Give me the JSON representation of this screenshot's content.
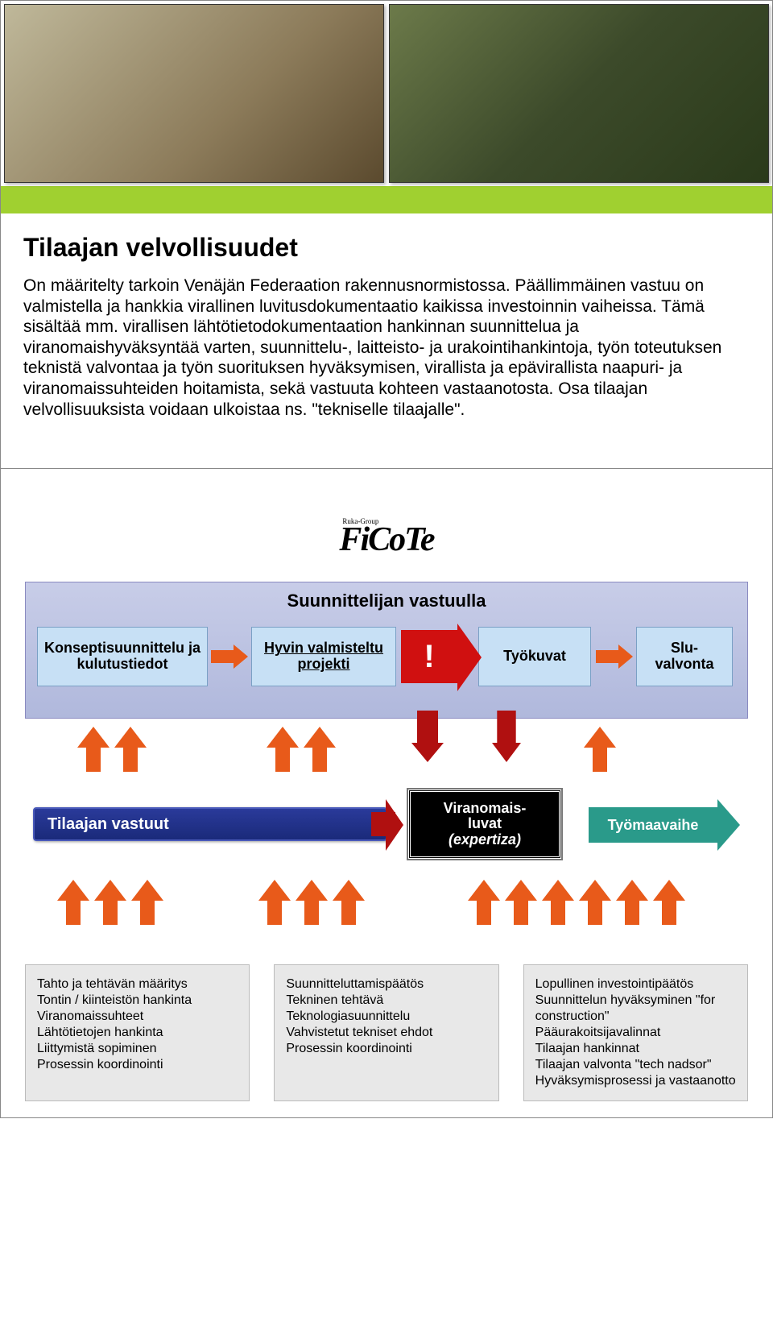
{
  "slide1": {
    "green_bar_color": "#a0d030",
    "title": "Tilaajan velvollisuudet",
    "body": "On määritelty tarkoin Venäjän Federaation rakennusnormistossa. Päällimmäinen vastuu on valmistella ja hankkia virallinen luvitus­dokumentaatio kaikissa investoinnin vaiheissa. Tämä sisältää mm. virallisen lähtötietodokumentaation hankinnan suunnittelua ja viranomaishyväksyntää varten, suunnittelu-, laitteisto- ja urakointi­hankintoja, työn toteutuksen teknistä valvontaa ja työn suorituksen hyväksymisen, virallista ja epävirallista naapuri- ja viranomais­suhteiden hoitamista, sekä vastuuta kohteen vastaanotosta. Osa tilaajan velvollisuuksista voidaan ulkoistaa ns. \"tekniselle tilaajalle\"."
  },
  "slide2": {
    "logo_small": "Ruka-Group",
    "logo": "FiCoTe",
    "designer_title": "Suunnittelijan vastuulla",
    "stages": {
      "s1": "Konseptisuunnittelu ja kulutustiedot",
      "s2": "Hyvin valmisteltu projekti",
      "bang": "!",
      "s3": "Työkuvat",
      "s4": "Slu-\nvalvonta"
    },
    "client_bar": "Tilaajan vastuut",
    "permit": {
      "l1": "Viranomais-",
      "l2": "luvat",
      "l3": "(expertiza)"
    },
    "site_phase": "Työmaavaihe",
    "info": {
      "col1": "Tahto ja tehtävän määritys\nTontin / kiinteistön hankinta\nViranomaissuhteet\nLähtötietojen hankinta\nLiittymistä sopiminen\nProsessin koordinointi",
      "col2": "Suunnitteluttamispäätös\nTekninen tehtävä\nTeknologiasuunnittelu\nVahvistetut tekniset ehdot\nProsessin koordinointi",
      "col3": "Lopullinen investointipäätös\nSuunnittelun hyväksyminen \"for construction\"\nPääurakoitsijavalinnat\nTilaajan hankinnat\nTilaajan valvonta \"tech nadsor\"\nHyväksymisprosessi ja vastaanotto"
    },
    "colors": {
      "band_bg_top": "#c8cde8",
      "band_bg_bot": "#b0b8dc",
      "stage_bg": "#c7e0f5",
      "orange": "#e85a1a",
      "red": "#b01010",
      "client_bar": "#2a3a9a",
      "permit_bg": "#000000",
      "site_arrow": "#2a9a8a",
      "info_bg": "#e8e8e8"
    }
  }
}
